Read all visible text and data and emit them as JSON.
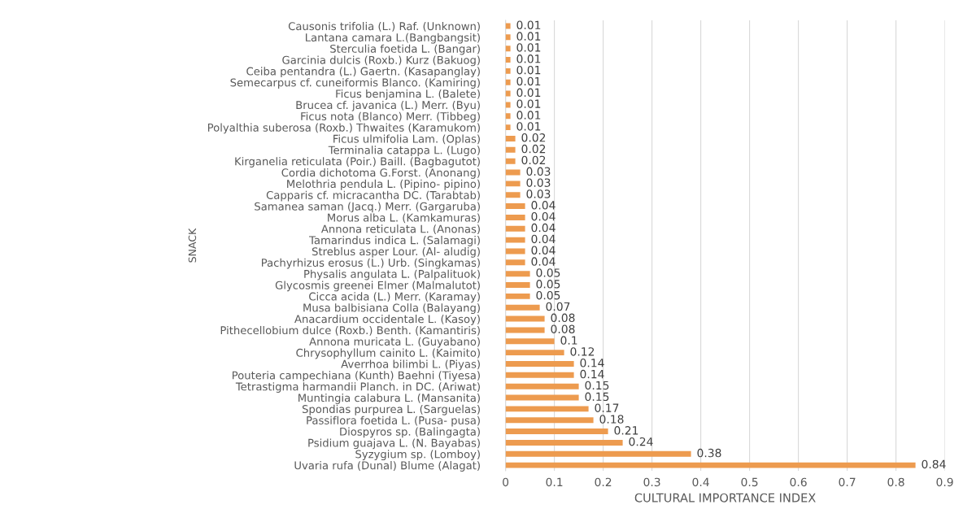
{
  "chart_data": {
    "type": "bar",
    "orientation": "horizontal",
    "xlabel": "CULTURAL IMPORTANCE INDEX",
    "ylabel": "SNACK",
    "categories": [
      "Causonis trifolia (L.) Raf. (Unknown)",
      "Lantana camara L.(Bangbangsit)",
      "Sterculia foetida L. (Bangar)",
      "Garcinia dulcis (Roxb.) Kurz (Bakuog)",
      "Ceiba pentandra (L.) Gaertn. (Kasapanglay)",
      "Semecarpus cf. cuneiformis Blanco. (Kamiring)",
      "Ficus benjamina L. (Balete)",
      "Brucea cf. javanica (L.) Merr. (Byu)",
      "Ficus nota (Blanco) Merr. (Tibbeg)",
      "Polyalthia suberosa (Roxb.) Thwaites (Karamukom)",
      "Ficus ulmifolia Lam. (Oplas)",
      "Terminalia catappa L. (Lugo)",
      "Kirganelia reticulata (Poir.) Baill. (Bagbagutot)",
      "Cordia dichotoma G.Forst. (Anonang)",
      "Melothria pendula L. (Pipino- pipino)",
      "Capparis cf. micracantha DC. (Tarabtab)",
      "Samanea saman (Jacq.) Merr. (Gargaruba)",
      "Morus alba L. (Kamkamuras)",
      "Annona reticulata L. (Anonas)",
      "Tamarindus indica L. (Salamagi)",
      "Streblus asper Lour. (Al- aludig)",
      "Pachyrhizus erosus (L.) Urb. (Singkamas)",
      "Physalis angulata L. (Palpalituok)",
      "Glycosmis greenei Elmer (Malmalutot)",
      "Cicca acida (L.) Merr. (Karamay)",
      "Musa balbisiana Colla (Balayang)",
      "Anacardium occidentale L. (Kasoy)",
      "Pithecellobium dulce (Roxb.) Benth. (Kamantiris)",
      "Annona muricata L. (Guyabano)",
      "Chrysophyllum cainito L. (Kaimito)",
      "Averrhoa bilimbi L. (Piyas)",
      "Pouteria campechiana (Kunth) Baehni (Tiyesa)",
      "Tetrastigma harmandii Planch. in DC. (Ariwat)",
      "Muntingia calabura L. (Mansanita)",
      "Spondias purpurea L. (Sarguelas)",
      "Passiflora foetida L. (Pusa- pusa)",
      "Diospyros sp. (Balingagta)",
      "Psidium guajava L. (N. Bayabas)",
      "Syzygium sp. (Lomboy)",
      "Uvaria rufa (Dunal) Blume (Alagat)"
    ],
    "values": [
      0.01,
      0.01,
      0.01,
      0.01,
      0.01,
      0.01,
      0.01,
      0.01,
      0.01,
      0.01,
      0.02,
      0.02,
      0.02,
      0.03,
      0.03,
      0.03,
      0.04,
      0.04,
      0.04,
      0.04,
      0.04,
      0.04,
      0.05,
      0.05,
      0.05,
      0.07,
      0.08,
      0.08,
      0.1,
      0.12,
      0.14,
      0.14,
      0.15,
      0.15,
      0.17,
      0.18,
      0.21,
      0.24,
      0.38,
      0.84
    ],
    "color": "#ed9b4f",
    "data_labels": true,
    "xlim": [
      0,
      0.9
    ],
    "xticks": [
      0,
      0.1,
      0.2,
      0.3,
      0.4,
      0.5,
      0.6,
      0.7,
      0.8,
      0.9
    ],
    "grid": "x"
  }
}
